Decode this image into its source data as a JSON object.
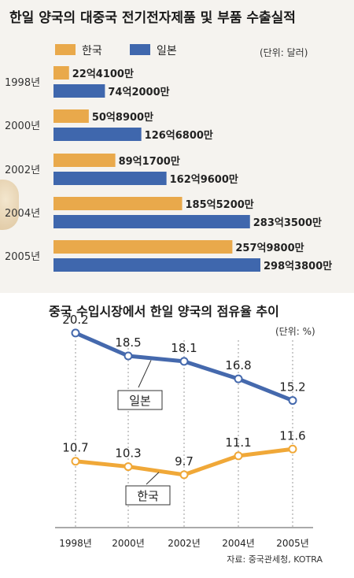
{
  "top_chart": {
    "title": "한일 양국의 대중국 전기전자제품 및 부품 수출실적",
    "unit": "(단위: 달러)",
    "colors": {
      "korea": "#e9a94b",
      "japan": "#3f67ad"
    },
    "chart_data": {
      "type": "bar",
      "orientation": "horizontal",
      "categories": [
        "1998년",
        "2000년",
        "2002년",
        "2004년",
        "2005년"
      ],
      "series": [
        {
          "name": "한국",
          "values": [
            2241000000,
            5089000000,
            8917000000,
            18552000000,
            25798000000
          ],
          "labels": [
            "22억4100만",
            "50억8900만",
            "89억1700만",
            "185억5200만",
            "257억9800만"
          ]
        },
        {
          "name": "일본",
          "values": [
            7420000000,
            12668000000,
            16296000000,
            28335000000,
            29838000000
          ],
          "labels": [
            "74억2000만",
            "126억6800만",
            "162억9600만",
            "283억3500만",
            "298억3800만"
          ]
        }
      ],
      "legend": "top-left"
    }
  },
  "bottom_chart": {
    "title": "중국 수입시장에서 한일 양국의 점유율 추이",
    "unit": "(단위: %)",
    "source": "자료: 중국관세청, KOTRA",
    "colors": {
      "korea": "#f0a838",
      "japan": "#4569ad"
    },
    "chart_data": {
      "type": "line",
      "categories": [
        "1998년",
        "2000년",
        "2002년",
        "2004년",
        "2005년"
      ],
      "series": [
        {
          "name": "일본",
          "values": [
            20.2,
            18.5,
            18.1,
            16.8,
            15.2
          ]
        },
        {
          "name": "한국",
          "values": [
            10.7,
            10.3,
            9.7,
            11.1,
            11.6
          ]
        }
      ],
      "ylim": [
        8,
        22
      ],
      "grid": "vertical-dashed"
    }
  }
}
